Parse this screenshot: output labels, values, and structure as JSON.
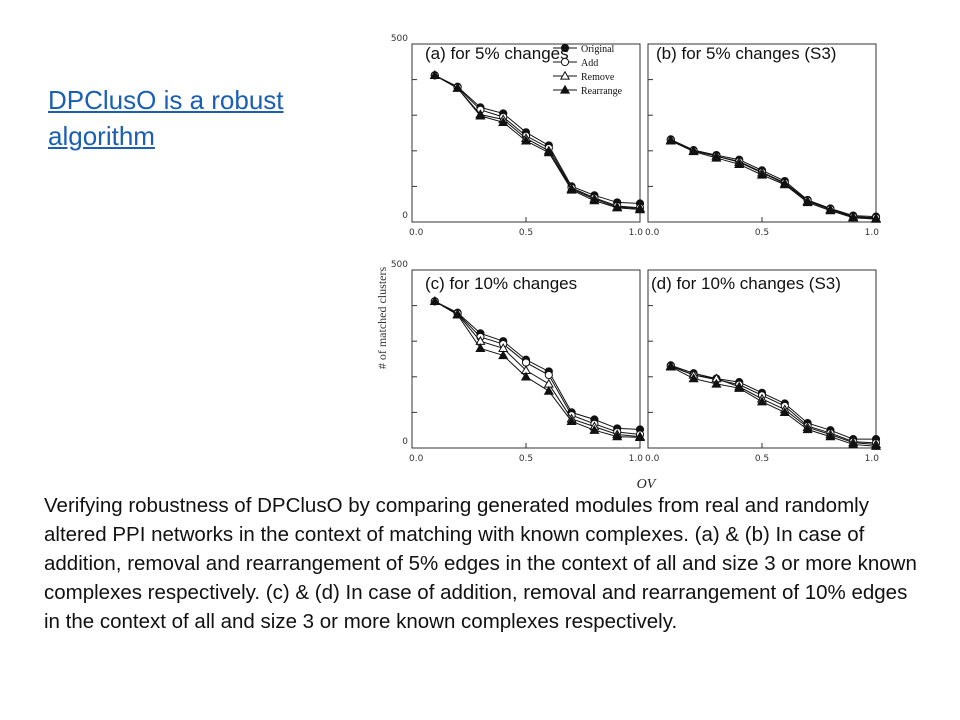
{
  "slide": {
    "title": "DPClusO is a robust algorithm",
    "caption": "Verifying robustness of DPClusO by comparing generated modules from real and randomly altered PPI networks in the context of matching with known complexes. (a) & (b) In case of addition, removal and rearrangement of 5% edges in the context of all and size 3 or more known complexes respectively. (c) & (d) In case of addition, removal and rearrangement of 10% edges in the context of all and size 3 or more known complexes respectively."
  },
  "figure": {
    "ylabel": "# of matched clusters",
    "xlabel": "OV",
    "legend": [
      "Original",
      "Add",
      "Remove",
      "Rearrange"
    ]
  },
  "chart_data": [
    {
      "type": "line",
      "title": "(a) for 5% changes",
      "xlim": [
        0,
        1
      ],
      "ylim": [
        0,
        500
      ],
      "x": [
        0.1,
        0.2,
        0.3,
        0.4,
        0.5,
        0.6,
        0.7,
        0.8,
        0.9,
        1.0
      ],
      "series": [
        {
          "name": "Original",
          "marker": "circle-filled",
          "values": [
            412,
            380,
            322,
            305,
            252,
            215,
            100,
            75,
            55,
            52
          ]
        },
        {
          "name": "Add",
          "marker": "circle-open",
          "values": [
            412,
            378,
            315,
            295,
            242,
            208,
            96,
            68,
            45,
            40
          ]
        },
        {
          "name": "Remove",
          "marker": "triangle-open",
          "values": [
            412,
            376,
            302,
            288,
            235,
            200,
            93,
            65,
            42,
            38
          ]
        },
        {
          "name": "Rearrange",
          "marker": "triangle-filled",
          "values": [
            412,
            376,
            298,
            280,
            228,
            195,
            90,
            60,
            40,
            35
          ]
        }
      ]
    },
    {
      "type": "line",
      "title": "(b) for 5% changes (S3)",
      "xlim": [
        0,
        1
      ],
      "ylim": [
        0,
        500
      ],
      "x": [
        0.1,
        0.2,
        0.3,
        0.4,
        0.5,
        0.6,
        0.7,
        0.8,
        0.9,
        1.0
      ],
      "series": [
        {
          "name": "Original",
          "marker": "circle-filled",
          "values": [
            232,
            202,
            188,
            175,
            145,
            115,
            62,
            38,
            18,
            15
          ]
        },
        {
          "name": "Add",
          "marker": "circle-open",
          "values": [
            230,
            200,
            185,
            170,
            140,
            110,
            60,
            36,
            15,
            12
          ]
        },
        {
          "name": "Remove",
          "marker": "triangle-open",
          "values": [
            230,
            200,
            185,
            168,
            138,
            108,
            58,
            35,
            14,
            10
          ]
        },
        {
          "name": "Rearrange",
          "marker": "triangle-filled",
          "values": [
            228,
            198,
            180,
            162,
            132,
            105,
            55,
            32,
            12,
            8
          ]
        }
      ]
    },
    {
      "type": "line",
      "title": "(c) for 10% changes",
      "xlim": [
        0,
        1
      ],
      "ylim": [
        0,
        500
      ],
      "x": [
        0.1,
        0.2,
        0.3,
        0.4,
        0.5,
        0.6,
        0.7,
        0.8,
        0.9,
        1.0
      ],
      "series": [
        {
          "name": "Original",
          "marker": "circle-filled",
          "values": [
            412,
            380,
            322,
            300,
            248,
            215,
            100,
            80,
            55,
            52
          ]
        },
        {
          "name": "Add",
          "marker": "circle-open",
          "values": [
            412,
            378,
            312,
            292,
            240,
            205,
            92,
            68,
            45,
            38
          ]
        },
        {
          "name": "Remove",
          "marker": "triangle-open",
          "values": [
            412,
            376,
            300,
            280,
            218,
            180,
            82,
            60,
            38,
            32
          ]
        },
        {
          "name": "Rearrange",
          "marker": "triangle-filled",
          "values": [
            412,
            374,
            280,
            260,
            200,
            160,
            75,
            50,
            32,
            30
          ]
        }
      ]
    },
    {
      "type": "line",
      "title": "(d) for 10% changes (S3)",
      "xlim": [
        0,
        1
      ],
      "ylim": [
        0,
        500
      ],
      "x": [
        0.1,
        0.2,
        0.3,
        0.4,
        0.5,
        0.6,
        0.7,
        0.8,
        0.9,
        1.0
      ],
      "series": [
        {
          "name": "Original",
          "marker": "circle-filled",
          "values": [
            232,
            210,
            195,
            185,
            155,
            125,
            70,
            50,
            25,
            25
          ]
        },
        {
          "name": "Add",
          "marker": "circle-open",
          "values": [
            230,
            205,
            192,
            178,
            148,
            118,
            62,
            42,
            18,
            14
          ]
        },
        {
          "name": "Remove",
          "marker": "triangle-open",
          "values": [
            230,
            205,
            195,
            172,
            138,
            108,
            58,
            38,
            15,
            10
          ]
        },
        {
          "name": "Rearrange",
          "marker": "triangle-filled",
          "values": [
            228,
            195,
            180,
            168,
            130,
            100,
            52,
            32,
            10,
            5
          ]
        }
      ]
    }
  ]
}
